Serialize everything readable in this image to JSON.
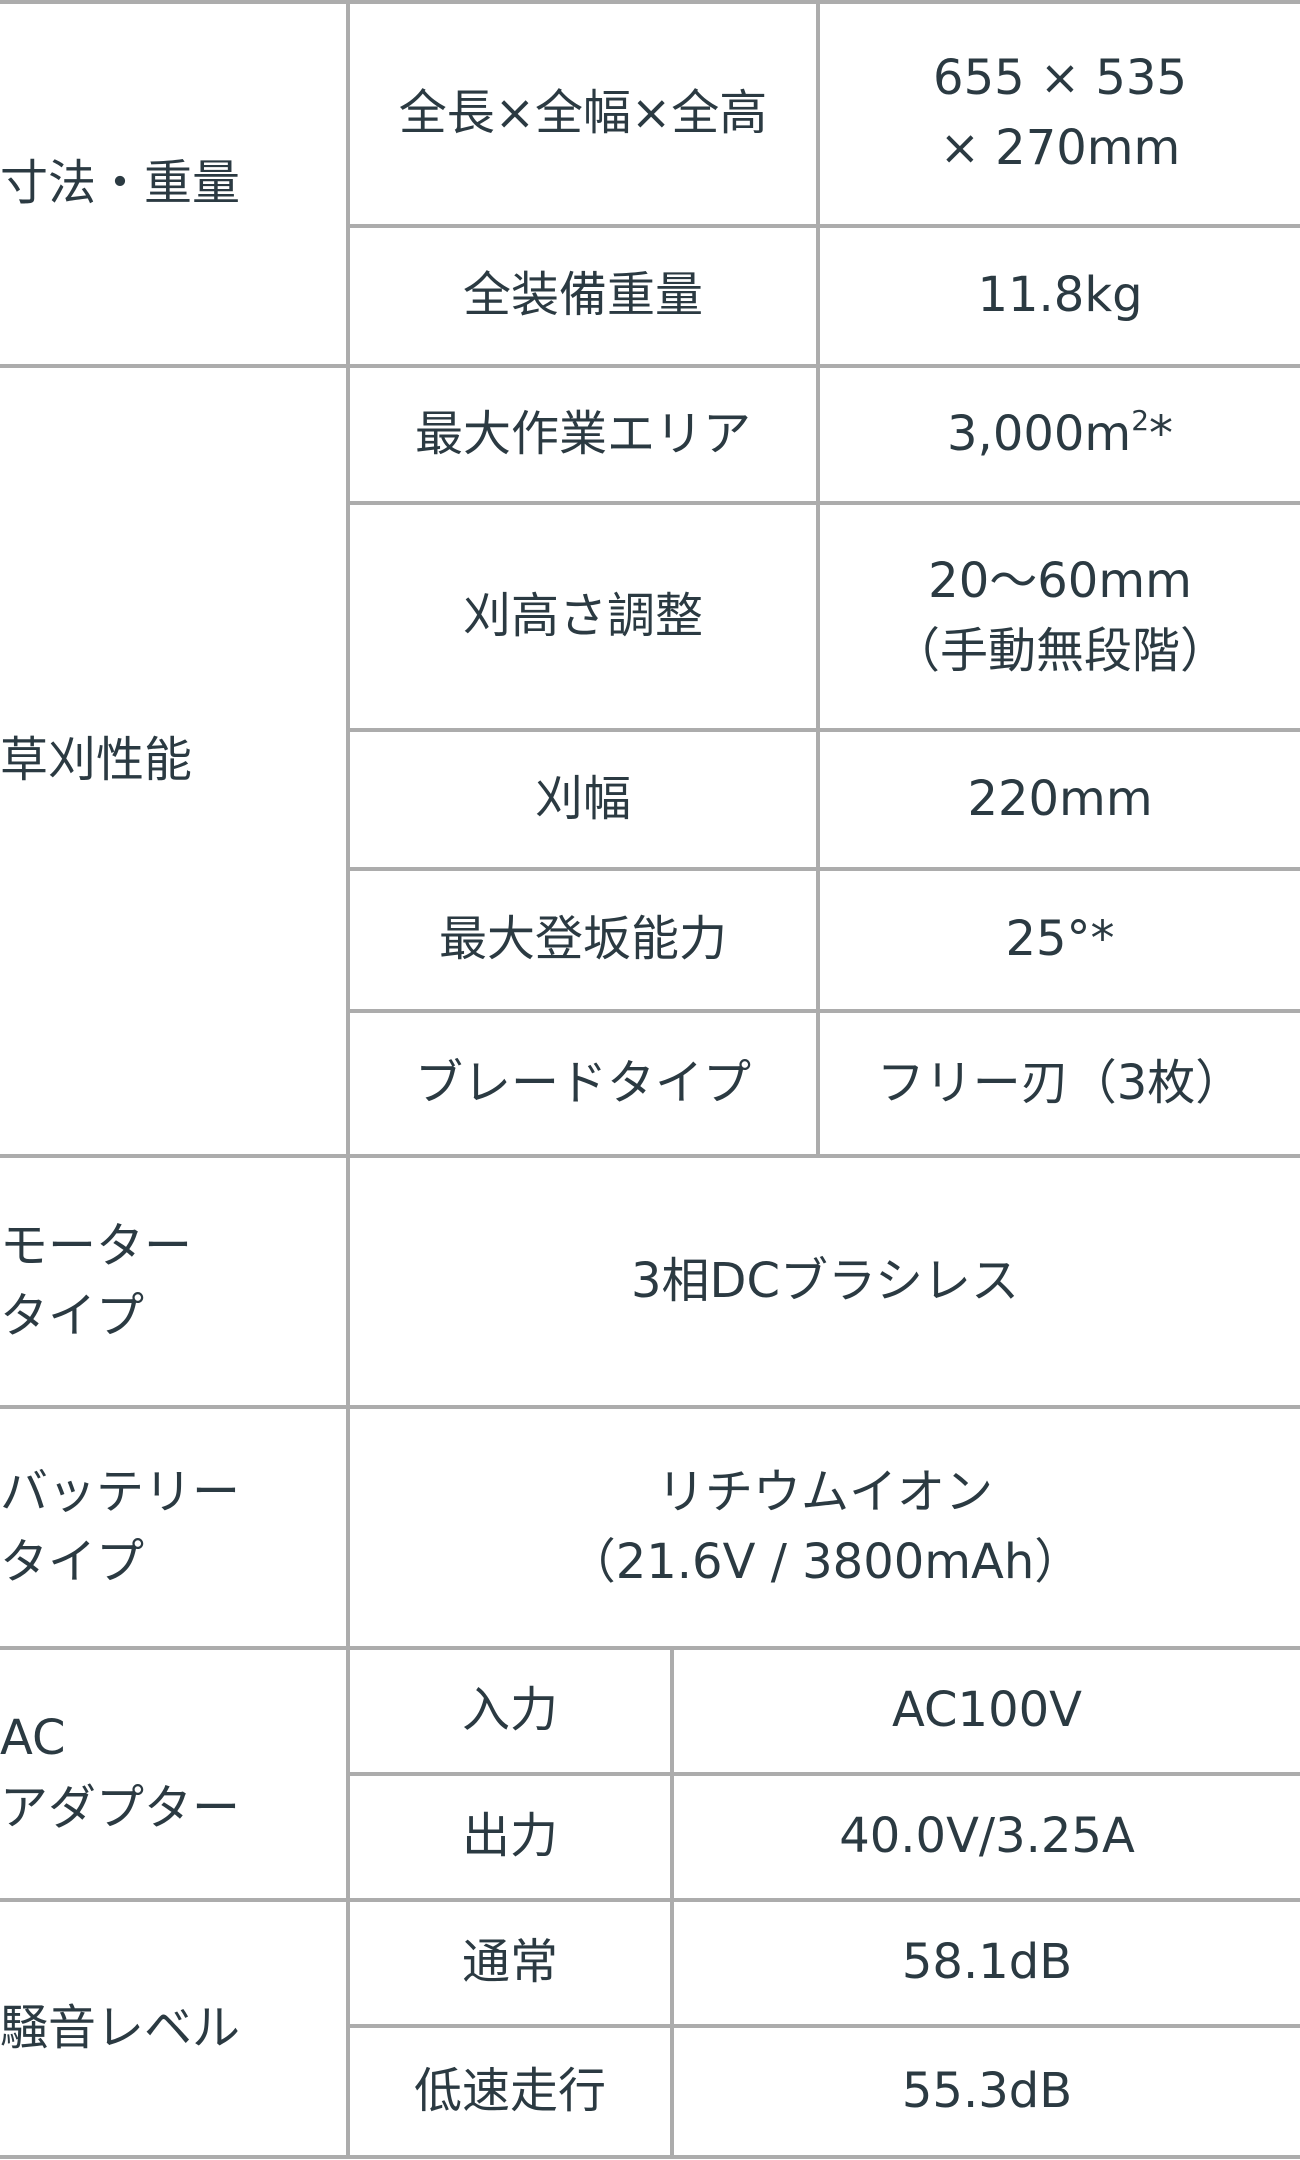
{
  "spec_table": {
    "dimensions": {
      "label": "寸法・重量",
      "rows": [
        {
          "name": "全長×全幅×全高",
          "value": "655 × 535\n× 270mm"
        },
        {
          "name": "全装備重量",
          "value": "11.8kg"
        }
      ]
    },
    "mowing": {
      "label": "草刈性能",
      "rows": [
        {
          "name": "最大作業エリア",
          "value": "3,000m",
          "sup": "2",
          "suffix": "*"
        },
        {
          "name": "刈高さ調整",
          "value": "20〜60mm\n（手動無段階）"
        },
        {
          "name": "刈幅",
          "value": "220mm"
        },
        {
          "name": "最大登坂能力",
          "value": "25°*"
        },
        {
          "name": "ブレードタイプ",
          "value": "フリー刃（3枚）"
        }
      ]
    },
    "motor": {
      "label": "モーター\nタイプ",
      "value": "3相DCブラシレス"
    },
    "battery": {
      "label": "バッテリー\nタイプ",
      "value": "リチウムイオン\n（21.6V / 3800mAh）"
    },
    "adapter": {
      "label": "AC\nアダプター",
      "rows": [
        {
          "name": "入力",
          "value": "AC100V"
        },
        {
          "name": "出力",
          "value": "40.0V/3.25A"
        }
      ]
    },
    "noise": {
      "label": "騒音レベル",
      "rows": [
        {
          "name": "通常",
          "value": "58.1dB"
        },
        {
          "name": "低速走行",
          "value": "55.3dB"
        }
      ]
    }
  }
}
